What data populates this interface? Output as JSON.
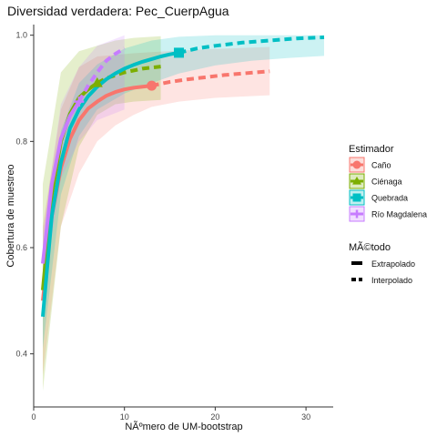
{
  "chart_data": {
    "type": "line",
    "title": "Diversidad verdadera: Pec_CuerpAgua",
    "xlabel": "NÃºmero de UM-bootstrap",
    "ylabel": "Cobertura de muestreo",
    "xlim": [
      0,
      33
    ],
    "ylim": [
      0.3,
      1.02
    ],
    "x_ticks": [
      0,
      10,
      20,
      30
    ],
    "y_ticks": [
      0.4,
      0.6,
      0.8,
      1.0
    ],
    "x_tick_labels": [
      "0",
      "10",
      "20",
      "30"
    ],
    "y_tick_labels": [
      "0.4",
      "0.6",
      "0.8",
      "1.0"
    ],
    "grid": false,
    "legend_position": "right",
    "legend_estimator_title": "Estimador",
    "legend_method_title": "MÃ©todo",
    "method_labels": [
      "Extrapolado",
      "Interpolado"
    ],
    "series": [
      {
        "name": "Caño",
        "color": "#F8766D",
        "marker": "circle",
        "observed": {
          "x": 13,
          "y": 0.905
        },
        "interpolated": [
          [
            1,
            0.5
          ],
          [
            2,
            0.66
          ],
          [
            3,
            0.75
          ],
          [
            4,
            0.805
          ],
          [
            5,
            0.84
          ],
          [
            6,
            0.862
          ],
          [
            7,
            0.875
          ],
          [
            8,
            0.886
          ],
          [
            9,
            0.893
          ],
          [
            10,
            0.898
          ],
          [
            11,
            0.901
          ],
          [
            12,
            0.903
          ],
          [
            13,
            0.905
          ]
        ],
        "extrapolated": [
          [
            13,
            0.905
          ],
          [
            15,
            0.912
          ],
          [
            17,
            0.917
          ],
          [
            19,
            0.921
          ],
          [
            21,
            0.925
          ],
          [
            23,
            0.928
          ],
          [
            26,
            0.932
          ]
        ],
        "lower": [
          [
            1,
            0.36
          ],
          [
            3,
            0.64
          ],
          [
            5,
            0.74
          ],
          [
            7,
            0.8
          ],
          [
            9,
            0.83
          ],
          [
            11,
            0.85
          ],
          [
            13,
            0.865
          ],
          [
            16,
            0.875
          ],
          [
            20,
            0.882
          ],
          [
            26,
            0.887
          ]
        ],
        "upper": [
          [
            1,
            0.64
          ],
          [
            3,
            0.86
          ],
          [
            5,
            0.94
          ],
          [
            7,
            0.96
          ],
          [
            9,
            0.963
          ],
          [
            11,
            0.966
          ],
          [
            13,
            0.968
          ],
          [
            16,
            0.971
          ],
          [
            20,
            0.974
          ],
          [
            26,
            0.978
          ]
        ]
      },
      {
        "name": "Ciénaga",
        "color": "#7CAE00",
        "marker": "triangle",
        "observed": {
          "x": 7,
          "y": 0.91
        },
        "interpolated": [
          [
            1,
            0.52
          ],
          [
            2,
            0.7
          ],
          [
            3,
            0.8
          ],
          [
            4,
            0.852
          ],
          [
            5,
            0.882
          ],
          [
            6,
            0.898
          ],
          [
            7,
            0.91
          ]
        ],
        "extrapolated": [
          [
            7,
            0.91
          ],
          [
            8,
            0.919
          ],
          [
            10,
            0.93
          ],
          [
            12,
            0.937
          ],
          [
            14,
            0.941
          ]
        ],
        "lower": [
          [
            1,
            0.33
          ],
          [
            3,
            0.64
          ],
          [
            5,
            0.79
          ],
          [
            7,
            0.85
          ],
          [
            9,
            0.87
          ],
          [
            11,
            0.875
          ],
          [
            14,
            0.878
          ]
        ],
        "upper": [
          [
            1,
            0.72
          ],
          [
            3,
            0.93
          ],
          [
            5,
            0.97
          ],
          [
            7,
            0.98
          ],
          [
            9,
            0.99
          ],
          [
            11,
            0.995
          ],
          [
            14,
            0.998
          ]
        ]
      },
      {
        "name": "Quebrada",
        "color": "#00BFC4",
        "marker": "square",
        "observed": {
          "x": 16,
          "y": 0.967
        },
        "interpolated": [
          [
            1,
            0.47
          ],
          [
            2,
            0.66
          ],
          [
            3,
            0.76
          ],
          [
            4,
            0.825
          ],
          [
            5,
            0.86
          ],
          [
            6,
            0.885
          ],
          [
            7,
            0.903
          ],
          [
            8,
            0.917
          ],
          [
            9,
            0.928
          ],
          [
            10,
            0.937
          ],
          [
            11,
            0.944
          ],
          [
            12,
            0.95
          ],
          [
            13,
            0.955
          ],
          [
            14,
            0.96
          ],
          [
            15,
            0.964
          ],
          [
            16,
            0.967
          ]
        ],
        "extrapolated": [
          [
            16,
            0.967
          ],
          [
            18,
            0.975
          ],
          [
            20,
            0.98
          ],
          [
            23,
            0.986
          ],
          [
            26,
            0.99
          ],
          [
            29,
            0.994
          ],
          [
            32,
            0.996
          ]
        ],
        "lower": [
          [
            1,
            0.41
          ],
          [
            3,
            0.7
          ],
          [
            5,
            0.81
          ],
          [
            7,
            0.86
          ],
          [
            10,
            0.89
          ],
          [
            13,
            0.91
          ],
          [
            16,
            0.928
          ],
          [
            20,
            0.943
          ],
          [
            24,
            0.952
          ],
          [
            28,
            0.957
          ],
          [
            32,
            0.961
          ]
        ],
        "upper": [
          [
            1,
            0.53
          ],
          [
            3,
            0.82
          ],
          [
            5,
            0.91
          ],
          [
            7,
            0.945
          ],
          [
            10,
            0.975
          ],
          [
            13,
            0.99
          ],
          [
            16,
            0.997
          ],
          [
            20,
            1.0
          ],
          [
            24,
            1.0
          ],
          [
            28,
            1.0
          ],
          [
            32,
            1.0
          ]
        ]
      },
      {
        "name": "Río Magdalena",
        "color": "#C77CFF",
        "marker": "plus",
        "observed": {
          "x": 5,
          "y": 0.875
        },
        "interpolated": [
          [
            1,
            0.57
          ],
          [
            2,
            0.72
          ],
          [
            3,
            0.805
          ],
          [
            4,
            0.848
          ],
          [
            5,
            0.875
          ]
        ],
        "extrapolated": [
          [
            5,
            0.875
          ],
          [
            6,
            0.905
          ],
          [
            7,
            0.93
          ],
          [
            8,
            0.952
          ],
          [
            9,
            0.965
          ],
          [
            10,
            0.975
          ]
        ],
        "lower": [
          [
            1,
            0.51
          ],
          [
            3,
            0.73
          ],
          [
            5,
            0.8
          ],
          [
            7,
            0.84
          ],
          [
            10,
            0.86
          ]
        ],
        "upper": [
          [
            1,
            0.63
          ],
          [
            3,
            0.87
          ],
          [
            5,
            0.94
          ],
          [
            7,
            0.98
          ],
          [
            10,
            1.0
          ]
        ]
      }
    ]
  }
}
